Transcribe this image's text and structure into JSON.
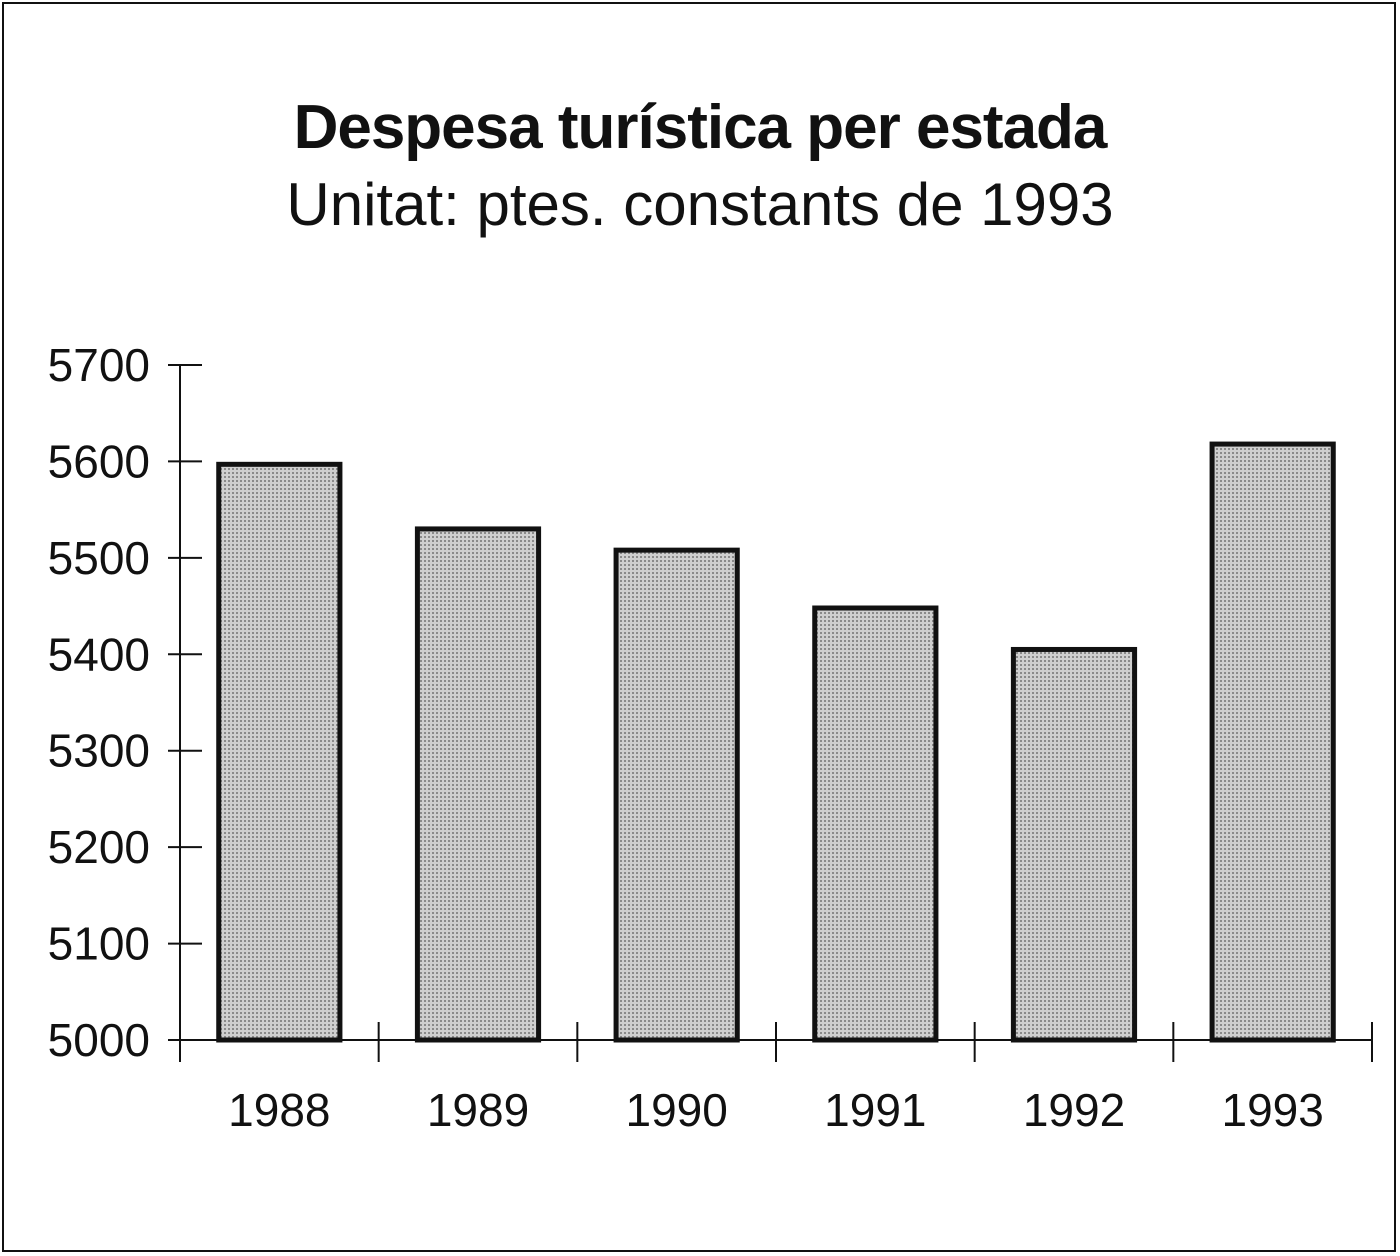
{
  "chart_data": {
    "type": "bar",
    "title": "Despesa turística per estada",
    "subtitle": "Unitat: ptes. constants de 1993",
    "categories": [
      "1988",
      "1989",
      "1990",
      "1991",
      "1992",
      "1993"
    ],
    "values": [
      5597,
      5530,
      5508,
      5448,
      5405,
      5618
    ],
    "ylim": [
      5000,
      5700
    ],
    "yticks": [
      5000,
      5100,
      5200,
      5300,
      5400,
      5500,
      5600,
      5700
    ],
    "ytick_labels": [
      "5000",
      "5100",
      "5200",
      "5300",
      "5400",
      "5500",
      "5600",
      "5700"
    ],
    "grid": false,
    "bar_fill": "#b8b8b8",
    "bar_stroke": "#111111"
  }
}
